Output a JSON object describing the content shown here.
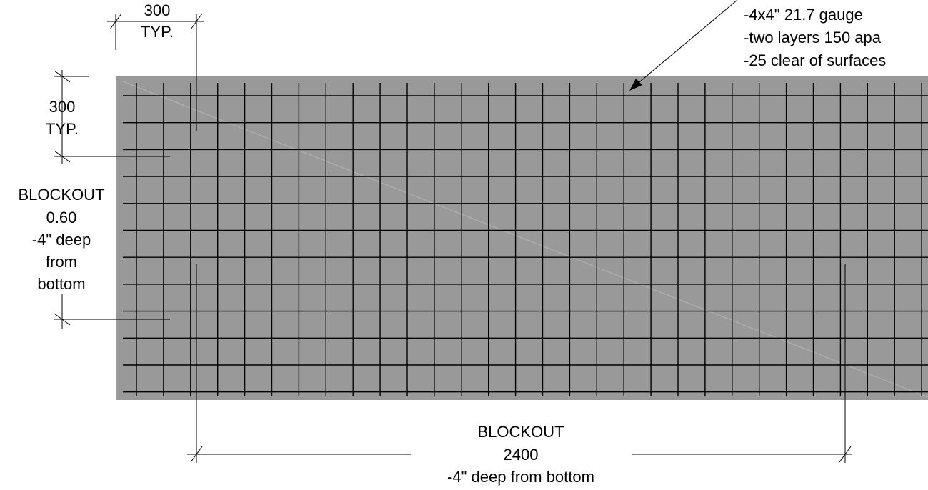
{
  "colors": {
    "slab_fill": "#999999",
    "mesh": "#000000",
    "diagonal": "#b4b4b4",
    "linework": "#000000"
  },
  "mesh_note": {
    "line1": "-4x4\" 21.7 gauge",
    "line2": "-two layers 150 apa",
    "line3": "-25 clear of surfaces"
  },
  "grid_spacing": {
    "horizontal": {
      "value": "300",
      "note": "TYP."
    },
    "vertical": {
      "value": "300",
      "note": "TYP."
    }
  },
  "blockout_vertical": {
    "title": "BLOCKOUT",
    "value": "0.60",
    "line3": "-4\" deep",
    "line4": "from",
    "line5": "bottom"
  },
  "blockout_horizontal": {
    "title": "BLOCKOUT",
    "value": "2400",
    "note": "-4\" deep from bottom"
  }
}
